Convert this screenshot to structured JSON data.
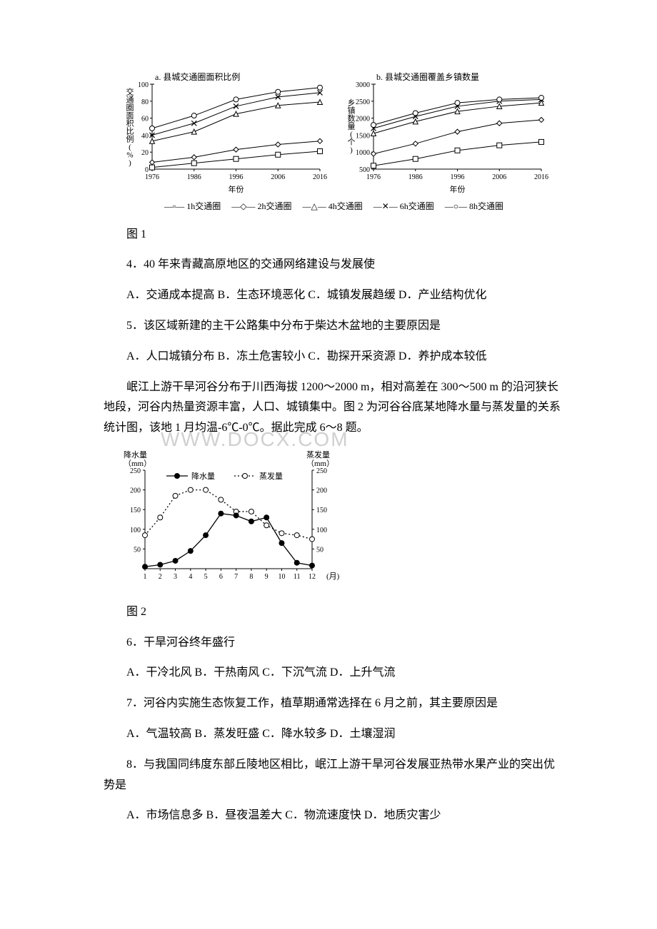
{
  "chart1": {
    "panel_a": {
      "title": "a. 县城交通圈面积比例",
      "ylabel": "交通圈面积比例(%)",
      "xlabel": "年份",
      "x": [
        1976,
        1986,
        1996,
        2006,
        2016
      ],
      "ylim": [
        0,
        100
      ],
      "ytick_step": 20,
      "series": {
        "1h": {
          "marker": "square",
          "values": [
            2,
            7,
            12,
            17,
            21
          ]
        },
        "2h": {
          "marker": "diamond",
          "values": [
            8,
            14,
            23,
            29,
            33
          ]
        },
        "4h": {
          "marker": "triangle",
          "values": [
            33,
            44,
            65,
            75,
            79
          ]
        },
        "6h": {
          "marker": "x",
          "values": [
            40,
            54,
            74,
            85,
            90
          ]
        },
        "8h": {
          "marker": "circle",
          "values": [
            48,
            63,
            82,
            91,
            96
          ]
        }
      }
    },
    "panel_b": {
      "title": "b. 县城交通圈覆盖乡镇数量",
      "ylabel": "乡镇数量(个)",
      "xlabel": "年份",
      "x": [
        1976,
        1986,
        1996,
        2006,
        2016
      ],
      "ylim": [
        500,
        3000
      ],
      "ytick_step": 500,
      "series": {
        "1h": {
          "marker": "square",
          "values": [
            600,
            800,
            1050,
            1200,
            1300
          ]
        },
        "2h": {
          "marker": "diamond",
          "values": [
            950,
            1250,
            1600,
            1850,
            1950
          ]
        },
        "4h": {
          "marker": "triangle",
          "values": [
            1550,
            1900,
            2200,
            2350,
            2450
          ]
        },
        "6h": {
          "marker": "x",
          "values": [
            1700,
            2050,
            2350,
            2500,
            2550
          ]
        },
        "8h": {
          "marker": "circle",
          "values": [
            1800,
            2150,
            2450,
            2550,
            2600
          ]
        }
      }
    },
    "legend": {
      "1h": "1h交通圈",
      "2h": "2h交通圈",
      "4h": "4h交通圈",
      "6h": "6h交通圈",
      "8h": "8h交通圈"
    },
    "stroke": "#000000",
    "bg": "#ffffff"
  },
  "fig1_caption": "图 1",
  "q4": {
    "stem": "4．40 年来青藏高原地区的交通网络建设与发展使",
    "opts": "A．交通成本提高 B．生态环境恶化 C．城镇发展趋缓 D．产业结构优化"
  },
  "q5": {
    "stem": "5．该区域新建的主干公路集中分布于柴达木盆地的主要原因是",
    "opts": "A．人口城镇分布 B．冻土危害较小 C．勘探开采资源  D．养护成本较低"
  },
  "passage2": "岷江上游干旱河谷分布于川西海拔 1200～2000 m，相对高差在 300～500 m 的沿河狭长地段，河谷内热量资源丰富，人口、城镇集中。图 2 为河谷谷底某地降水量与蒸发量的关系统计图，该地 1 月均温-6℃-0℃。据此完成 6～8 题。",
  "watermark": "WWW.DOCX.COM",
  "chart2": {
    "left_ylabel_top": "降水量",
    "left_ylabel_unit": "（mm）",
    "right_ylabel_top": "蒸发量",
    "right_ylabel_unit": "（mm）",
    "legend_precip": "降水量",
    "legend_evap": "蒸发量",
    "xlabel": "(月)",
    "x": [
      1,
      2,
      3,
      4,
      5,
      6,
      7,
      8,
      9,
      10,
      11,
      12
    ],
    "ylim": [
      0,
      250
    ],
    "ytick_step": 50,
    "precip": {
      "marker": "filled-circle",
      "style": "solid",
      "values": [
        5,
        10,
        20,
        45,
        85,
        140,
        135,
        120,
        130,
        65,
        15,
        8
      ]
    },
    "evap": {
      "marker": "open-circle",
      "style": "dashed",
      "values": [
        85,
        130,
        185,
        200,
        200,
        175,
        145,
        145,
        110,
        90,
        85,
        75
      ]
    },
    "stroke": "#000000"
  },
  "fig2_caption": "图 2",
  "q6": {
    "stem": "6．干旱河谷终年盛行",
    "opts": " A．干冷北风  B．干热南风  C．下沉气流  D．上升气流"
  },
  "q7": {
    "stem": "7．河谷内实施生态恢复工作，植草期通常选择在 6 月之前，其主要原因是",
    "opts": " A．气温较高   B．蒸发旺盛  C．降水较多  D．土壤湿润"
  },
  "q8": {
    "stem": "8．与我国同纬度东部丘陵地区相比，岷江上游干旱河谷发展亚热带水果产业的突出优势是",
    "opts": " A．市场信息多   B．昼夜温差大  C．物流速度快    D．地质灾害少"
  }
}
